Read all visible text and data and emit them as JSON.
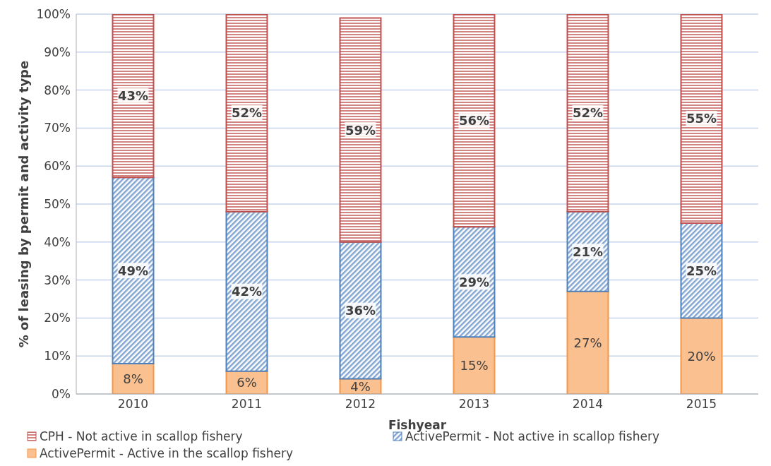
{
  "chart_data": {
    "type": "bar",
    "stacked": true,
    "xlabel": "Fishyear",
    "ylabel": "% of leasing by permit and activity type",
    "categories": [
      "2010",
      "2011",
      "2012",
      "2013",
      "2014",
      "2015"
    ],
    "series": [
      {
        "name": "ActivePermit - Active in the scallop fishery",
        "color": "#f79646",
        "values": [
          8,
          6,
          4,
          15,
          27,
          20
        ],
        "value_labels": [
          "8%",
          "6%",
          "4%",
          "15%",
          "27%",
          "20%"
        ]
      },
      {
        "name": "ActivePermit - Not active in scallop fishery",
        "color": "#4f81bd",
        "values": [
          49,
          42,
          36,
          29,
          21,
          25
        ],
        "value_labels": [
          "49%",
          "42%",
          "36%",
          "29%",
          "21%",
          "25%"
        ]
      },
      {
        "name": "CPH - Not active in scallop fishery",
        "color": "#c0504d",
        "values": [
          43,
          52,
          59,
          56,
          52,
          55
        ],
        "value_labels": [
          "43%",
          "52%",
          "59%",
          "56%",
          "52%",
          "55%"
        ]
      }
    ],
    "ylim": [
      0,
      100
    ],
    "yticks": [
      {
        "value": 0,
        "label": "0%"
      },
      {
        "value": 10,
        "label": "10%"
      },
      {
        "value": 20,
        "label": "20%"
      },
      {
        "value": 30,
        "label": "30%"
      },
      {
        "value": 40,
        "label": "40%"
      },
      {
        "value": 50,
        "label": "50%"
      },
      {
        "value": 60,
        "label": "60%"
      },
      {
        "value": 70,
        "label": "70%"
      },
      {
        "value": 80,
        "label": "80%"
      },
      {
        "value": 90,
        "label": "90%"
      },
      {
        "value": 100,
        "label": "100%"
      }
    ],
    "grid": "y",
    "legend": "bottom"
  }
}
